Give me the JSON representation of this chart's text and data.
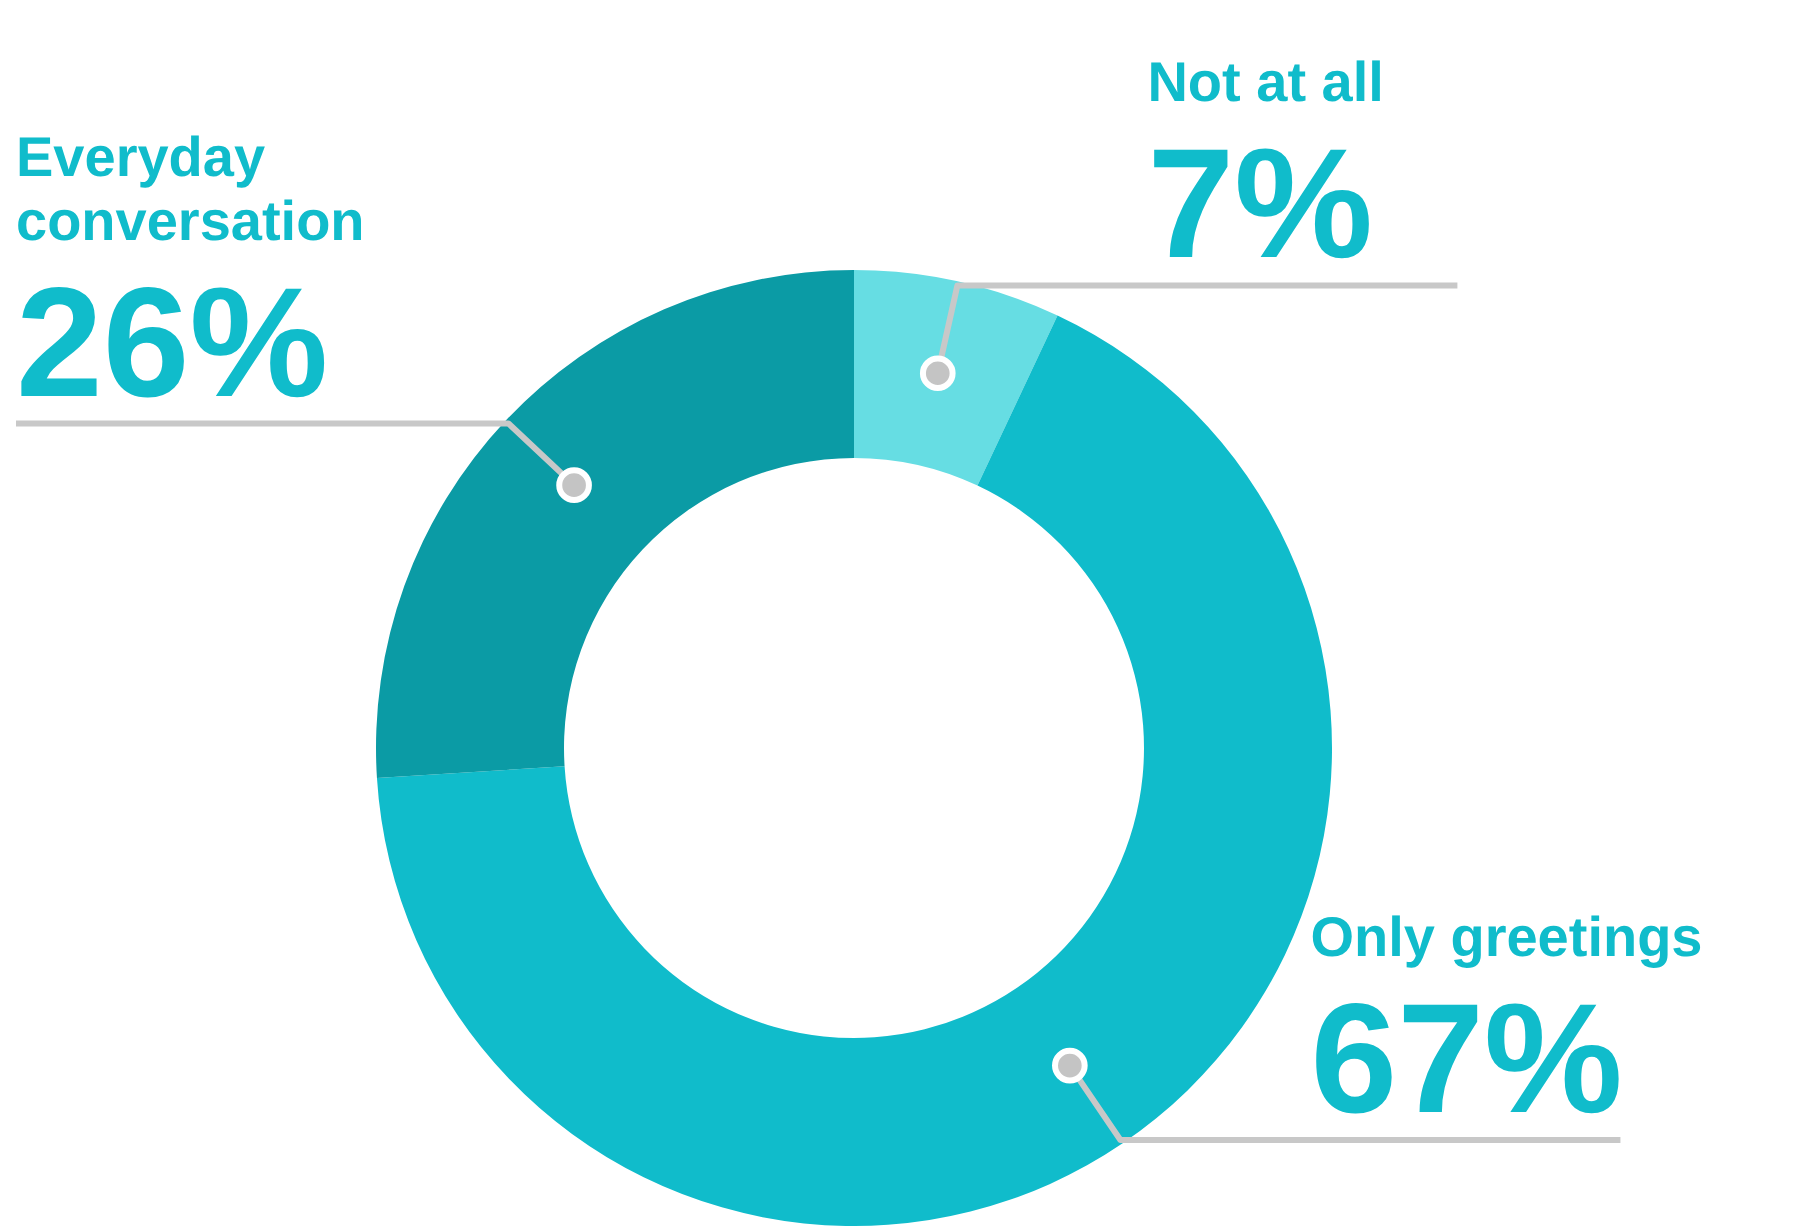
{
  "chart_data": {
    "type": "donut",
    "categories": [
      "Not at all",
      "Only greetings",
      "Everyday conversation"
    ],
    "values": [
      7,
      67,
      26
    ],
    "colors": [
      "#66dde3",
      "#10bccb",
      "#0b9ba5"
    ],
    "value_labels": [
      "7%",
      "67%",
      "26%"
    ]
  }
}
